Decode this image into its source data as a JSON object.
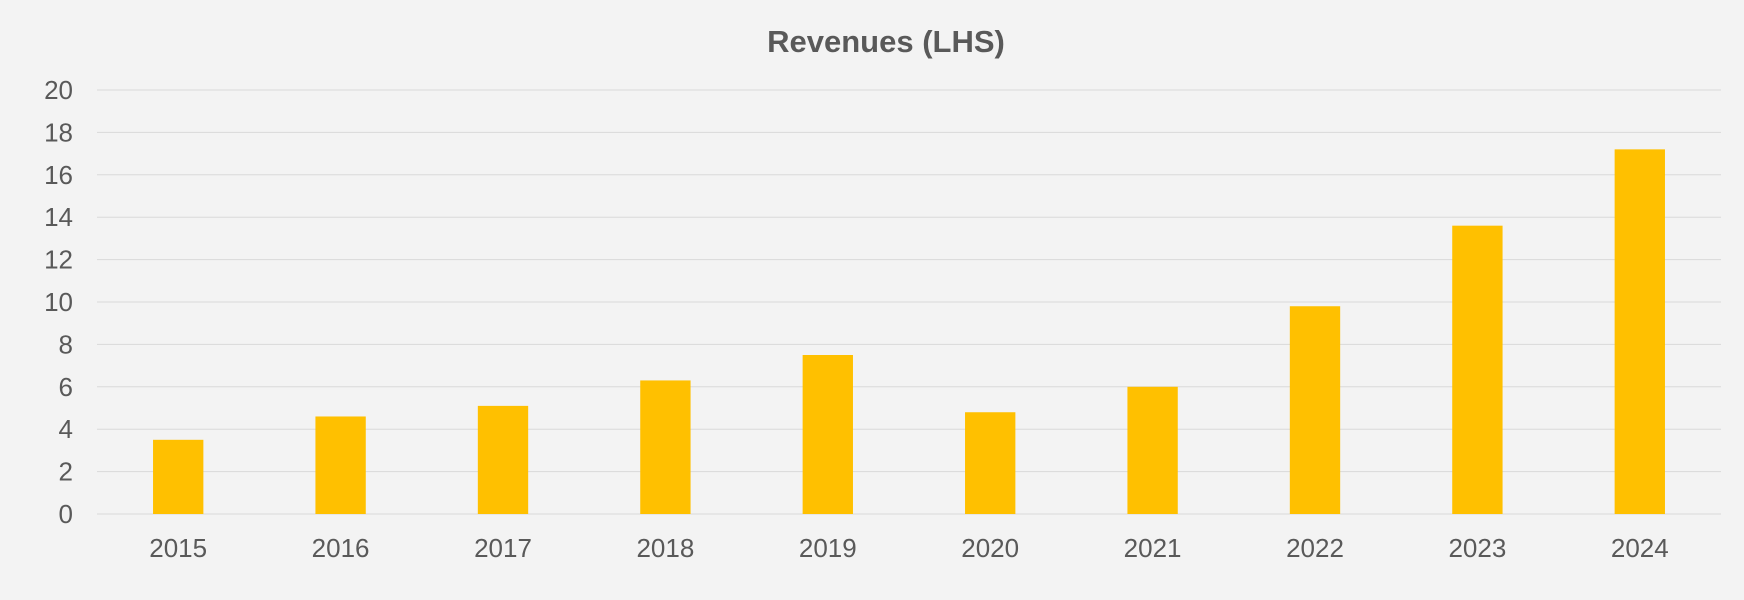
{
  "chart_data": {
    "type": "bar",
    "title": "Revenues (LHS)",
    "xlabel": "",
    "ylabel": "",
    "categories": [
      "2015",
      "2016",
      "2017",
      "2018",
      "2019",
      "2020",
      "2021",
      "2022",
      "2023",
      "2024"
    ],
    "values": [
      3.5,
      4.6,
      5.1,
      6.3,
      7.5,
      4.8,
      6.0,
      9.8,
      13.6,
      17.2
    ],
    "ylim": [
      0,
      20
    ],
    "yticks": [
      "0",
      "2",
      "4",
      "6",
      "8",
      "10",
      "12",
      "14",
      "16",
      "18",
      "20"
    ],
    "grid": true,
    "legend": "none",
    "colors": {
      "bar": "#ffc000",
      "grid": "#d9d9d9",
      "text": "#595959",
      "background": "#f3f3f3"
    }
  }
}
